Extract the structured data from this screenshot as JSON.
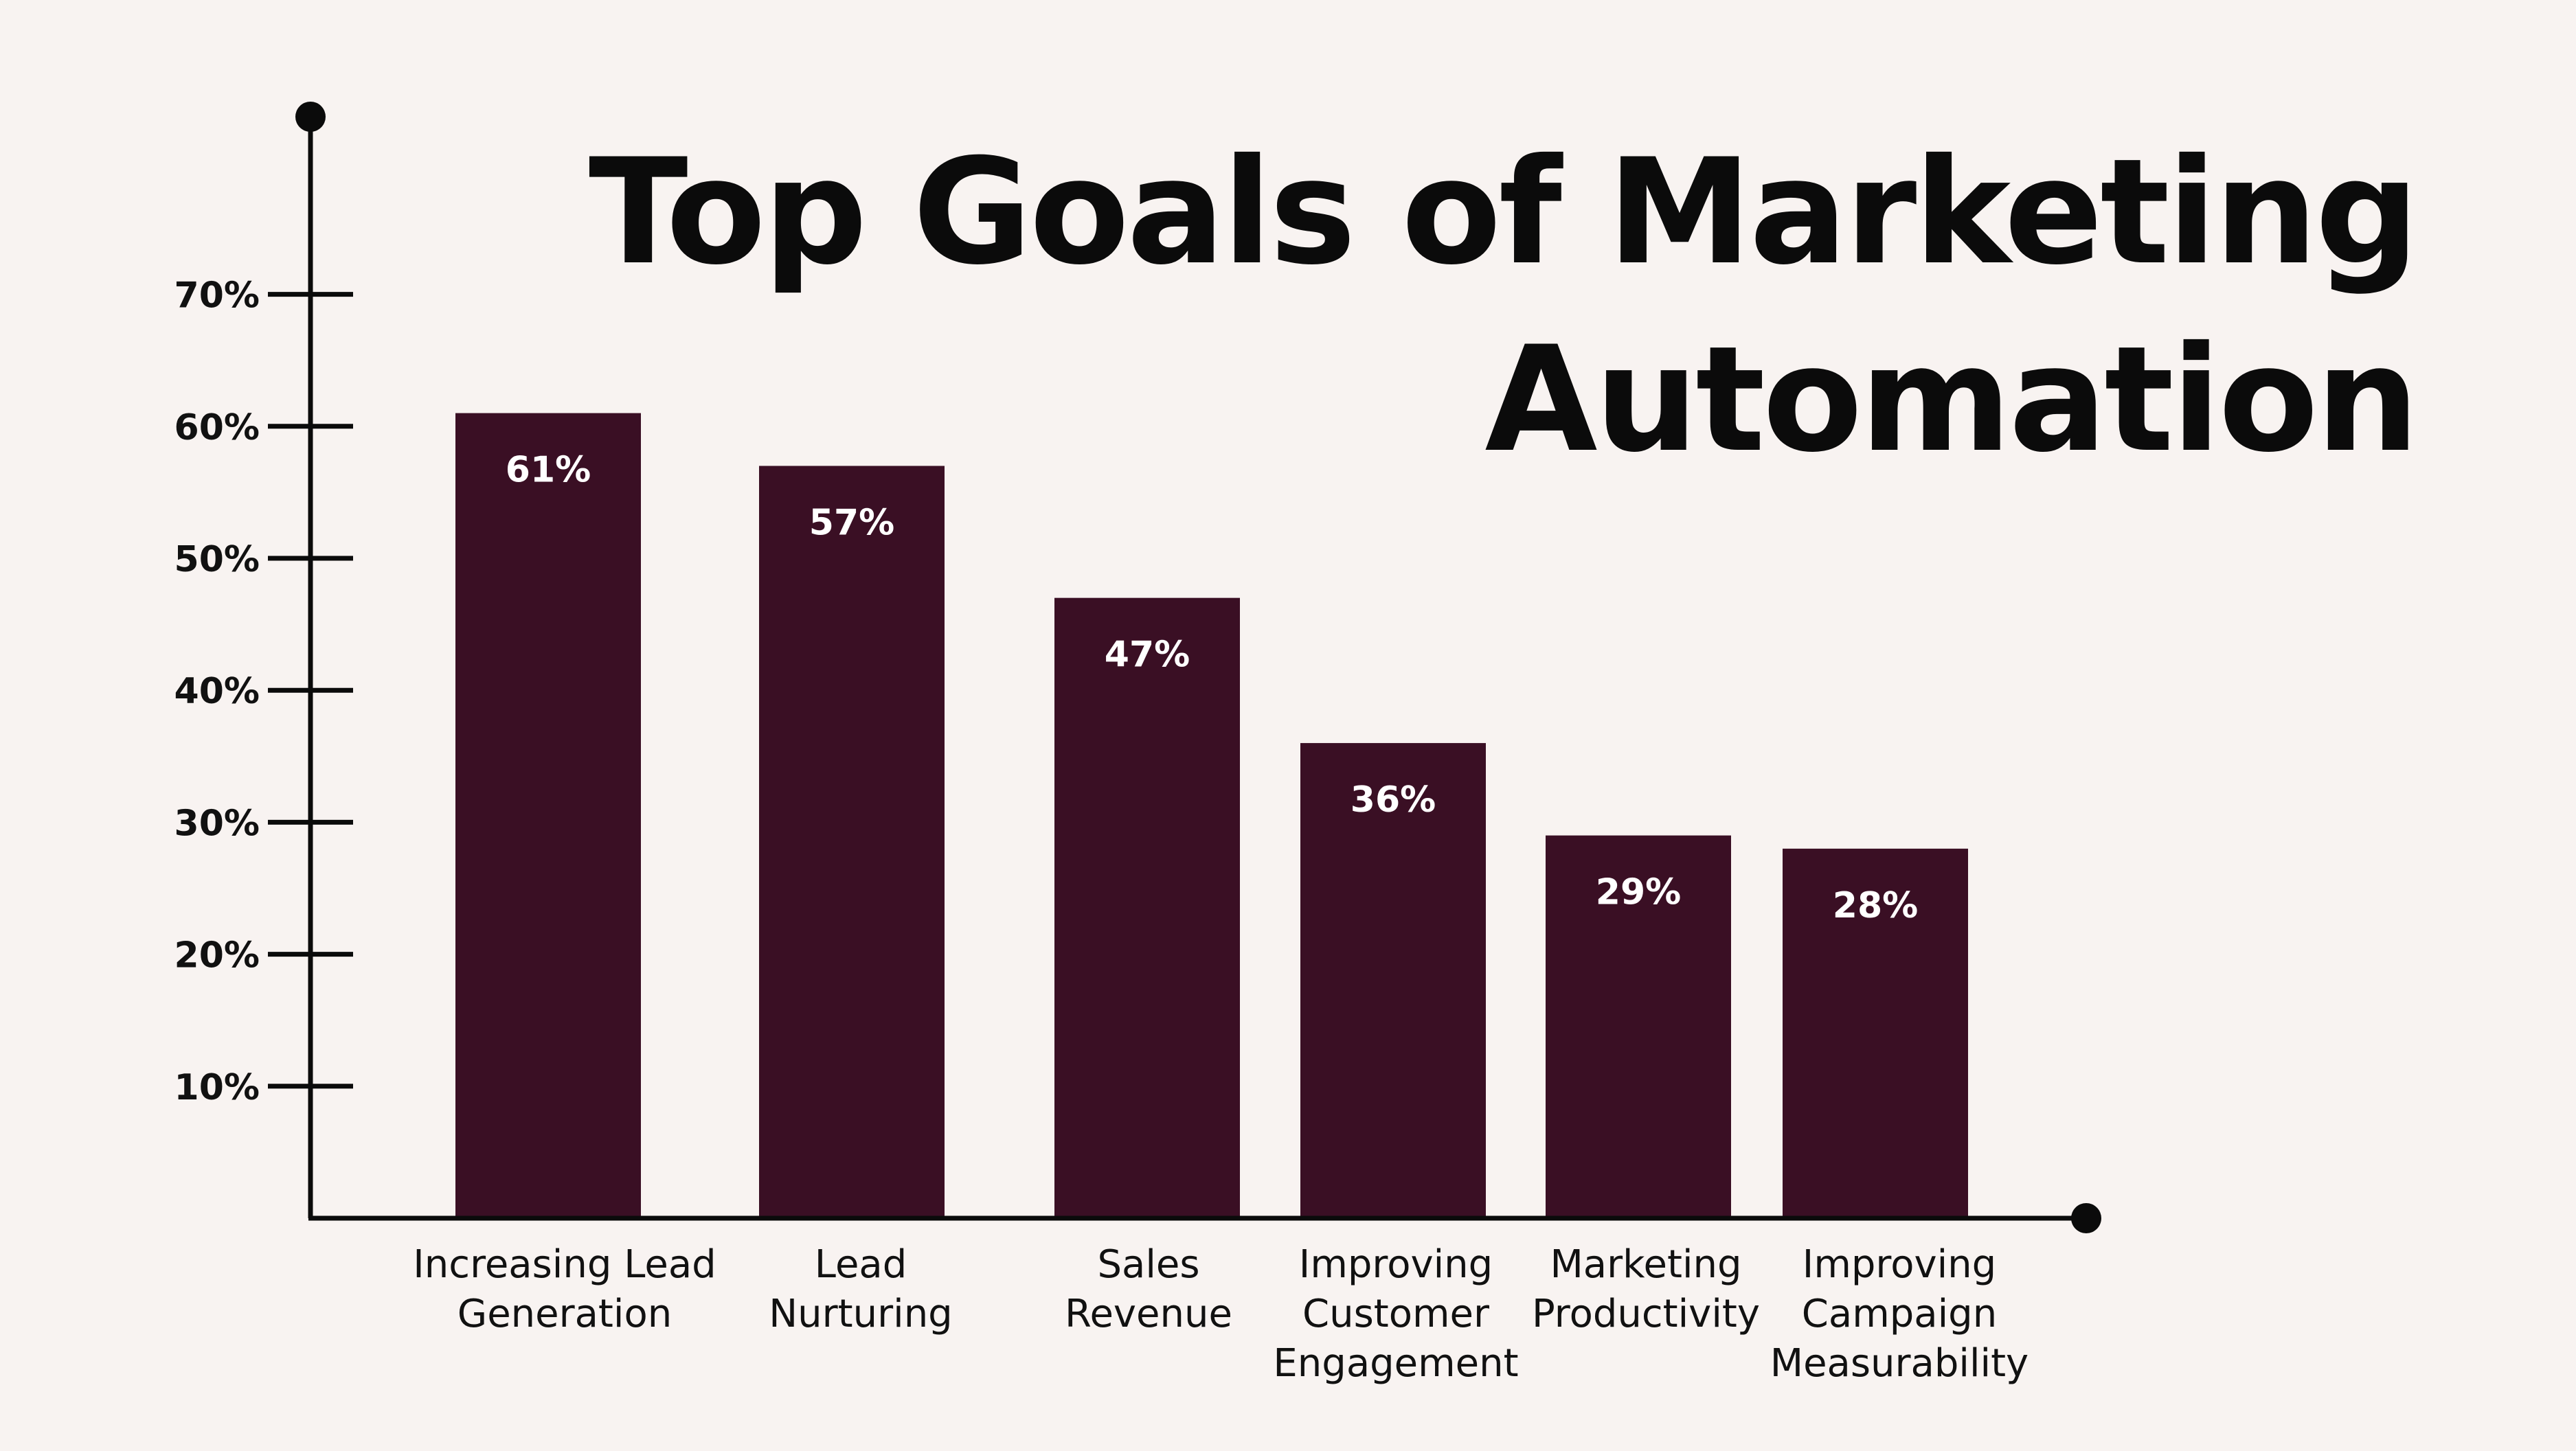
{
  "title_lines": [
    "Top Goals of Marketing",
    "Automation"
  ],
  "colors": {
    "background": "#f8f3f1",
    "bar": "#3a0f24",
    "axis": "#0b0b0b",
    "value_label": "#ffffff"
  },
  "chart_data": {
    "type": "bar",
    "title": "Top Goals of Marketing Automation",
    "categories": [
      "Increasing Lead Generation",
      "Lead Nurturing",
      "Sales Revenue",
      "Improving Customer Engagement",
      "Marketing Productivity",
      "Improving Campaign Measurability"
    ],
    "category_label_lines": [
      [
        "Increasing Lead",
        "Generation"
      ],
      [
        "Lead",
        "Nurturing"
      ],
      [
        "Sales",
        "Revenue"
      ],
      [
        "Improving",
        "Customer",
        "Engagement"
      ],
      [
        "Marketing",
        "Productivity"
      ],
      [
        "Improving",
        "Campaign",
        "Measurability"
      ]
    ],
    "values": [
      61,
      57,
      47,
      36,
      29,
      28
    ],
    "value_labels": [
      "61%",
      "57%",
      "47%",
      "36%",
      "29%",
      "28%"
    ],
    "y_ticks": [
      10,
      20,
      30,
      40,
      50,
      60,
      70
    ],
    "y_tick_labels": [
      "10%",
      "20%",
      "30%",
      "40%",
      "50%",
      "60%",
      "70%"
    ],
    "ylim": [
      0,
      80
    ],
    "xlabel": "",
    "ylabel": "",
    "grid": false,
    "legend": "none"
  }
}
